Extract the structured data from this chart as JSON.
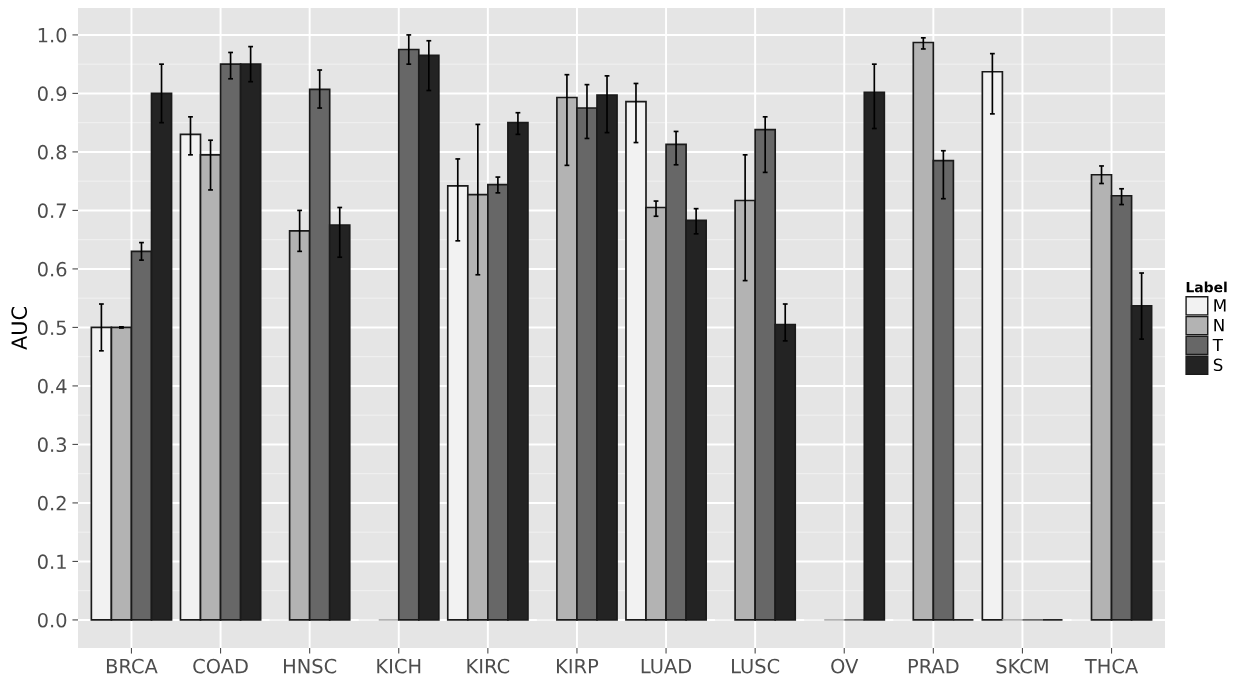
{
  "chart_data": {
    "type": "bar",
    "ylabel": "AUC",
    "legend_title": "Label",
    "legend": "right",
    "grid": true,
    "categories": [
      "BRCA",
      "COAD",
      "HNSC",
      "KICH",
      "KIRC",
      "KIRP",
      "LUAD",
      "LUSC",
      "OV",
      "PRAD",
      "SKCM",
      "THCA"
    ],
    "ylim": [
      -0.048,
      1.046
    ],
    "yticks": [
      {
        "value": 0,
        "label": "0.0"
      },
      {
        "value": 0.1,
        "label": "0.1"
      },
      {
        "value": 0.2,
        "label": "0.2"
      },
      {
        "value": 0.3,
        "label": "0.3"
      },
      {
        "value": 0.4,
        "label": "0.4"
      },
      {
        "value": 0.5,
        "label": "0.5"
      },
      {
        "value": 0.6,
        "label": "0.6"
      },
      {
        "value": 0.7,
        "label": "0.7"
      },
      {
        "value": 0.8,
        "label": "0.8"
      },
      {
        "value": 0.9,
        "label": "0.9"
      },
      {
        "value": 1,
        "label": "1.0"
      }
    ],
    "series": [
      {
        "name": "M",
        "color": "#f2f2f2",
        "values": [
          0.5,
          0.83,
          0,
          0,
          0.742,
          0,
          0.886,
          0,
          0,
          0,
          0.937,
          0
        ],
        "errors": [
          [
            0.46,
            0.54
          ],
          [
            0.795,
            0.86
          ],
          null,
          null,
          [
            0.648,
            0.788
          ],
          null,
          [
            0.816,
            0.917
          ],
          null,
          null,
          null,
          [
            0.865,
            0.968
          ],
          null
        ]
      },
      {
        "name": "N",
        "color": "#b3b3b3",
        "values": [
          0.5,
          0.795,
          0.665,
          0,
          0.727,
          0.893,
          0.705,
          0.717,
          0,
          0.987,
          0,
          0.761
        ],
        "errors": [
          [
            0.499,
            0.501
          ],
          [
            0.735,
            0.82
          ],
          [
            0.63,
            0.7
          ],
          null,
          [
            0.59,
            0.847
          ],
          [
            0.777,
            0.932
          ],
          [
            0.69,
            0.716
          ],
          [
            0.58,
            0.795
          ],
          null,
          [
            0.976,
            0.995
          ],
          null,
          [
            0.746,
            0.776
          ]
        ]
      },
      {
        "name": "T",
        "color": "#676767",
        "values": [
          0.63,
          0.95,
          0.907,
          0.975,
          0.744,
          0.875,
          0.813,
          0.838,
          0,
          0.785,
          0,
          0.725
        ],
        "errors": [
          [
            0.615,
            0.645
          ],
          [
            0.925,
            0.97
          ],
          [
            0.875,
            0.94
          ],
          [
            0.95,
            1.0
          ],
          [
            0.73,
            0.757
          ],
          [
            0.823,
            0.915
          ],
          [
            0.778,
            0.835
          ],
          [
            0.765,
            0.86
          ],
          null,
          [
            0.72,
            0.802
          ],
          null,
          [
            0.71,
            0.737
          ]
        ]
      },
      {
        "name": "S",
        "color": "#232323",
        "values": [
          0.9,
          0.95,
          0.675,
          0.965,
          0.85,
          0.897,
          0.683,
          0.505,
          0.902,
          0,
          0,
          0.537
        ],
        "errors": [
          [
            0.85,
            0.95
          ],
          [
            0.92,
            0.98
          ],
          [
            0.62,
            0.705
          ],
          [
            0.905,
            0.99
          ],
          [
            0.83,
            0.867
          ],
          [
            0.833,
            0.93
          ],
          [
            0.66,
            0.703
          ],
          [
            0.477,
            0.54
          ],
          [
            0.84,
            0.95
          ],
          null,
          null,
          [
            0.48,
            0.593
          ]
        ]
      }
    ]
  }
}
